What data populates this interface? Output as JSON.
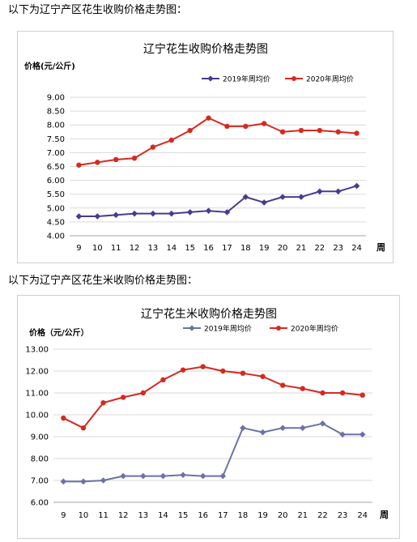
{
  "intro_texts": [
    "以下为辽宁产区花生收购价格走势图：",
    "以下为辽宁产区花生米收购价格走势图："
  ],
  "colors": {
    "series_2019": "#4b3a91",
    "series_2020": "#d42a20",
    "series_2019_b": "#6b72a8",
    "grid": "#d9d9d9",
    "axis": "#a6a6a6"
  },
  "chart_data": [
    {
      "type": "line",
      "title": "辽宁花生收购价格走势图",
      "ylabel": "价格(元/公斤)",
      "xlabel": "周",
      "x": [
        "9",
        "10",
        "11",
        "12",
        "13",
        "14",
        "15",
        "16",
        "17",
        "18",
        "19",
        "20",
        "21",
        "22",
        "23",
        "24"
      ],
      "ylim": [
        4.0,
        9.0
      ],
      "yticks": [
        "4.00",
        "4.50",
        "5.00",
        "5.50",
        "6.00",
        "6.50",
        "7.00",
        "7.50",
        "8.00",
        "8.50",
        "9.00"
      ],
      "grid": true,
      "legend_position": "top-right",
      "series": [
        {
          "name": "2019年周均价",
          "color": "#4b3a91",
          "marker": "diamond",
          "values": [
            4.7,
            4.7,
            4.75,
            4.8,
            4.8,
            4.8,
            4.85,
            4.9,
            4.85,
            5.4,
            5.2,
            5.4,
            5.4,
            5.6,
            5.6,
            5.8
          ]
        },
        {
          "name": "2020年周均价",
          "color": "#d42a20",
          "marker": "circle",
          "values": [
            6.55,
            6.65,
            6.75,
            6.8,
            7.2,
            7.45,
            7.8,
            8.25,
            7.95,
            7.95,
            8.05,
            7.75,
            7.8,
            7.8,
            7.75,
            7.7
          ]
        }
      ]
    },
    {
      "type": "line",
      "title": "辽宁花生米收购价格走势图",
      "ylabel": "价格（元/公斤）",
      "xlabel": "周",
      "x": [
        "9",
        "10",
        "11",
        "12",
        "13",
        "14",
        "15",
        "16",
        "17",
        "18",
        "19",
        "20",
        "21",
        "22",
        "23",
        "24"
      ],
      "ylim": [
        6.0,
        13.0
      ],
      "yticks": [
        "6.00",
        "7.00",
        "8.00",
        "9.00",
        "10.00",
        "11.00",
        "12.00",
        "13.00"
      ],
      "grid": true,
      "legend_position": "top-right",
      "series": [
        {
          "name": "2019年周均价",
          "color": "#6b72a8",
          "marker": "diamond",
          "values": [
            6.95,
            6.95,
            7.0,
            7.2,
            7.2,
            7.2,
            7.25,
            7.2,
            7.2,
            9.4,
            9.2,
            9.4,
            9.4,
            9.6,
            9.1,
            9.1
          ]
        },
        {
          "name": "2020年周均价",
          "color": "#d42a20",
          "marker": "circle",
          "values": [
            9.85,
            9.4,
            10.55,
            10.8,
            11.0,
            11.6,
            12.05,
            12.2,
            12.0,
            11.9,
            11.75,
            11.35,
            11.2,
            11.0,
            11.0,
            10.9
          ]
        }
      ]
    }
  ]
}
